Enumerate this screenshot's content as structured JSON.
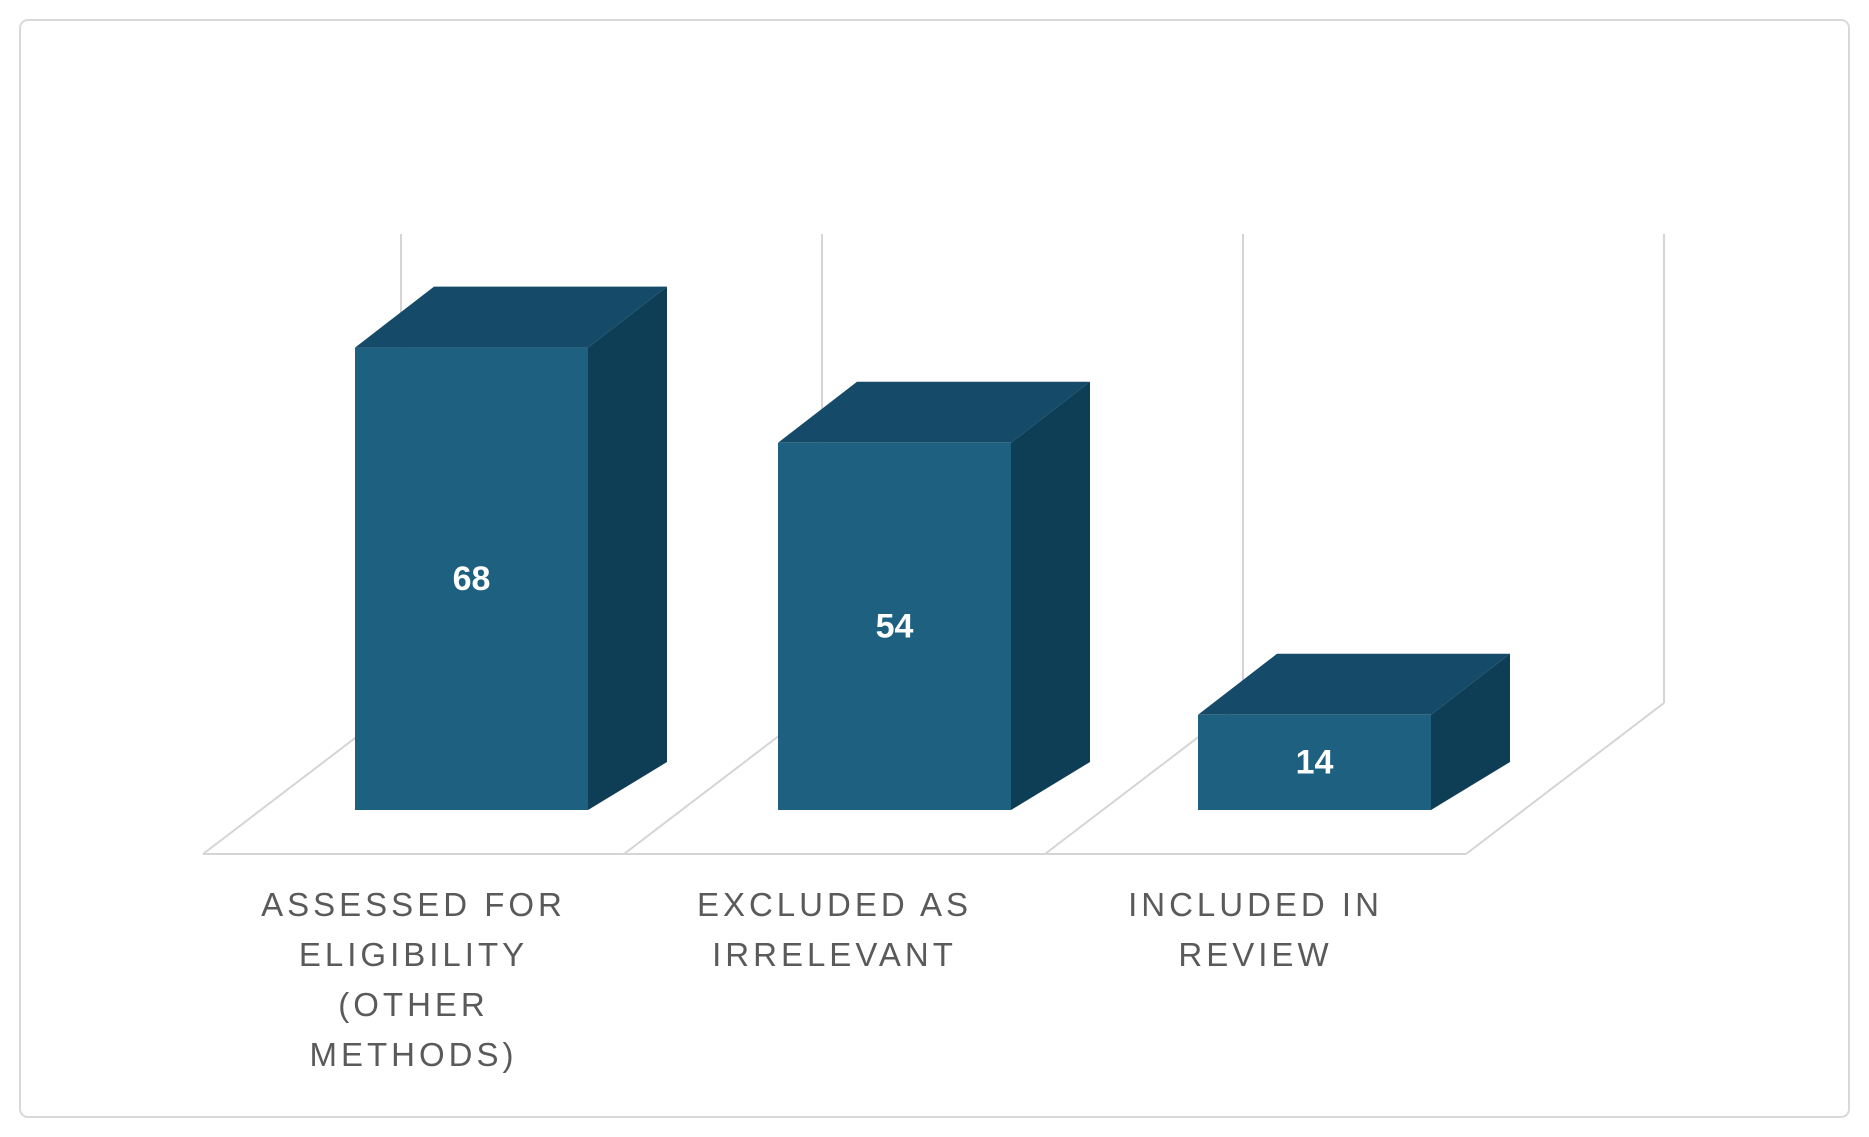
{
  "chart_data": {
    "type": "bar",
    "variant": "3d-column",
    "title": "",
    "xlabel": "",
    "ylabel": "",
    "legend": "none",
    "grid": "vertical-category-separators-and-floor-only",
    "ylim": [
      0,
      85
    ],
    "categories": [
      "ASSESSED FOR ELIGIBILITY (OTHER METHODS)",
      "EXCLUDED AS IRRELEVANT",
      "INCLUDED IN REVIEW"
    ],
    "category_label_lines": [
      [
        "ASSESSED FOR",
        "ELIGIBILITY",
        "(OTHER",
        "METHODS)"
      ],
      [
        "EXCLUDED AS",
        "IRRELEVANT"
      ],
      [
        "INCLUDED IN",
        "REVIEW"
      ]
    ],
    "values": [
      68,
      54,
      14
    ],
    "data_labels": [
      "68",
      "54",
      "14"
    ],
    "colors": {
      "bar_front": "#1D6080",
      "bar_top": "#154A68",
      "bar_side": "#0E3D56",
      "data_label_text": "#FFFFFF",
      "category_label_text": "#5A5A5A",
      "gridline": "#D6D4D4",
      "frame_border": "#D9D9D9",
      "background": "#FFFFFF"
    }
  }
}
